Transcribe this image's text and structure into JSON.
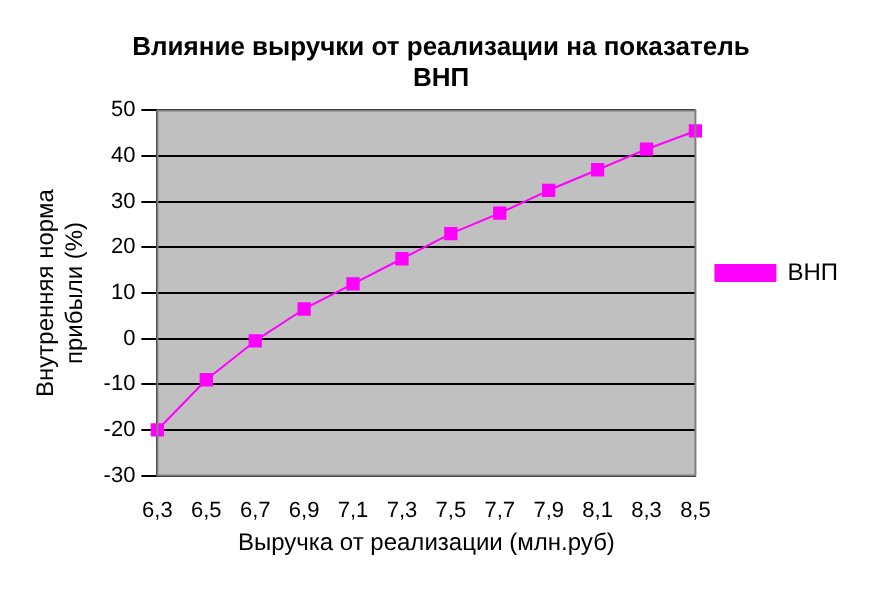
{
  "chart_data": {
    "type": "line",
    "title": "Влияние выручки от реализации на показатель ВНП",
    "xlabel": "Выручка от реализации (млн.руб)",
    "ylabel": "Внутренняя норма прибыли (%)",
    "categories": [
      "6,3",
      "6,5",
      "6,7",
      "6,9",
      "7,1",
      "7,3",
      "7,5",
      "7,7",
      "7,9",
      "8,1",
      "8,3",
      "8,5"
    ],
    "series": [
      {
        "name": "ВНП",
        "color": "#ff00ff",
        "values": [
          -20,
          -9,
          -0.5,
          6.5,
          12,
          17.5,
          23,
          27.5,
          32.5,
          37,
          41.5,
          45.5
        ]
      }
    ],
    "ylim": [
      -30,
      50
    ],
    "yticks": [
      -30,
      -20,
      -10,
      0,
      10,
      20,
      30,
      40,
      50
    ],
    "grid": "y",
    "legend": "right",
    "marker": "square",
    "line_style": "solid"
  }
}
